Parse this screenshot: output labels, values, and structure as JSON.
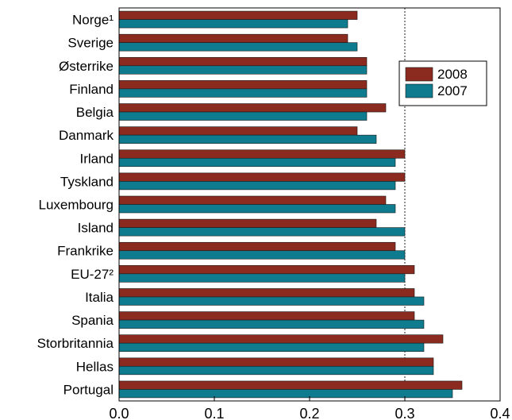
{
  "chart_data": {
    "type": "bar",
    "orientation": "horizontal",
    "categories": [
      "Norge¹",
      "Sverige",
      "Østerrike",
      "Finland",
      "Belgia",
      "Danmark",
      "Irland",
      "Tyskland",
      "Luxembourg",
      "Island",
      "Frankrike",
      "EU-27²",
      "Italia",
      "Spania",
      "Storbritannia",
      "Hellas",
      "Portugal"
    ],
    "series": [
      {
        "name": "2008",
        "color": "#8b2a1f",
        "values": [
          0.25,
          0.24,
          0.26,
          0.26,
          0.28,
          0.25,
          0.3,
          0.3,
          0.28,
          0.27,
          0.29,
          0.31,
          0.31,
          0.31,
          0.34,
          0.33,
          0.36
        ]
      },
      {
        "name": "2007",
        "color": "#0e7c8e",
        "values": [
          0.24,
          0.25,
          0.26,
          0.26,
          0.26,
          0.27,
          0.29,
          0.29,
          0.29,
          0.3,
          0.3,
          0.3,
          0.32,
          0.32,
          0.32,
          0.33,
          0.35
        ]
      }
    ],
    "xlim": [
      0.0,
      0.4
    ],
    "xticks": [
      "0.0",
      "0.1",
      "0.2",
      "0.3",
      "0.4"
    ],
    "reference_line": 0.3,
    "legend_position": "top-right",
    "title": "",
    "xlabel": "",
    "ylabel": ""
  }
}
